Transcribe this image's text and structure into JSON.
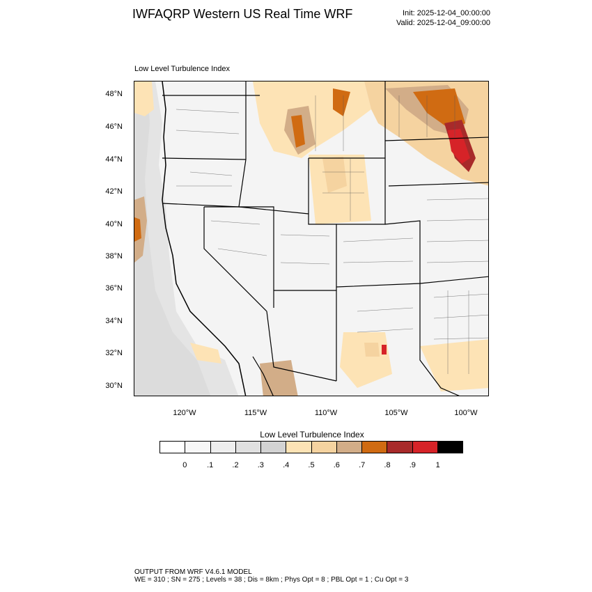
{
  "header": {
    "title": "IWFAQRP Western US Real Time WRF",
    "init": "Init: 2025-12-04_00:00:00",
    "valid": "Valid: 2025-12-04_09:00:00"
  },
  "panel": {
    "title": "Low Level Turbulence Index"
  },
  "map": {
    "lat_labels": [
      "48°N",
      "46°N",
      "44°N",
      "42°N",
      "40°N",
      "38°N",
      "36°N",
      "34°N",
      "32°N",
      "30°N"
    ],
    "lon_labels": [
      "120°W",
      "115°W",
      "110°W",
      "105°W",
      "100°W"
    ],
    "colors": {
      "background_low": "#f4f4f4",
      "water": "#e2e2e2",
      "light_orange": "#fde3b5",
      "tan": "#f5d3a0",
      "brown_tan": "#d2ad88",
      "orange": "#d06b12",
      "dark_red": "#a82a2a",
      "red": "#d62328",
      "boundary": "#000000"
    }
  },
  "colorbar": {
    "title": "Low Level Turbulence Index",
    "labels": [
      "0",
      ".1",
      ".2",
      ".3",
      ".4",
      ".5",
      ".6",
      ".7",
      ".8",
      ".9",
      "1"
    ],
    "colors": [
      "#ffffff",
      "#f7f7f7",
      "#eeeeee",
      "#e0e0e0",
      "#d3d3d3",
      "#fde3b5",
      "#f5d3a0",
      "#d2ad88",
      "#d06b12",
      "#a82a2a",
      "#d62328",
      "#000000"
    ]
  },
  "footer": {
    "line1": "OUTPUT FROM WRF V4.6.1 MODEL",
    "line2": "WE = 310 ; SN = 275 ; Levels = 38 ; Dis = 8km ; Phys Opt = 8 ; PBL Opt = 1 ; Cu Opt = 3"
  }
}
